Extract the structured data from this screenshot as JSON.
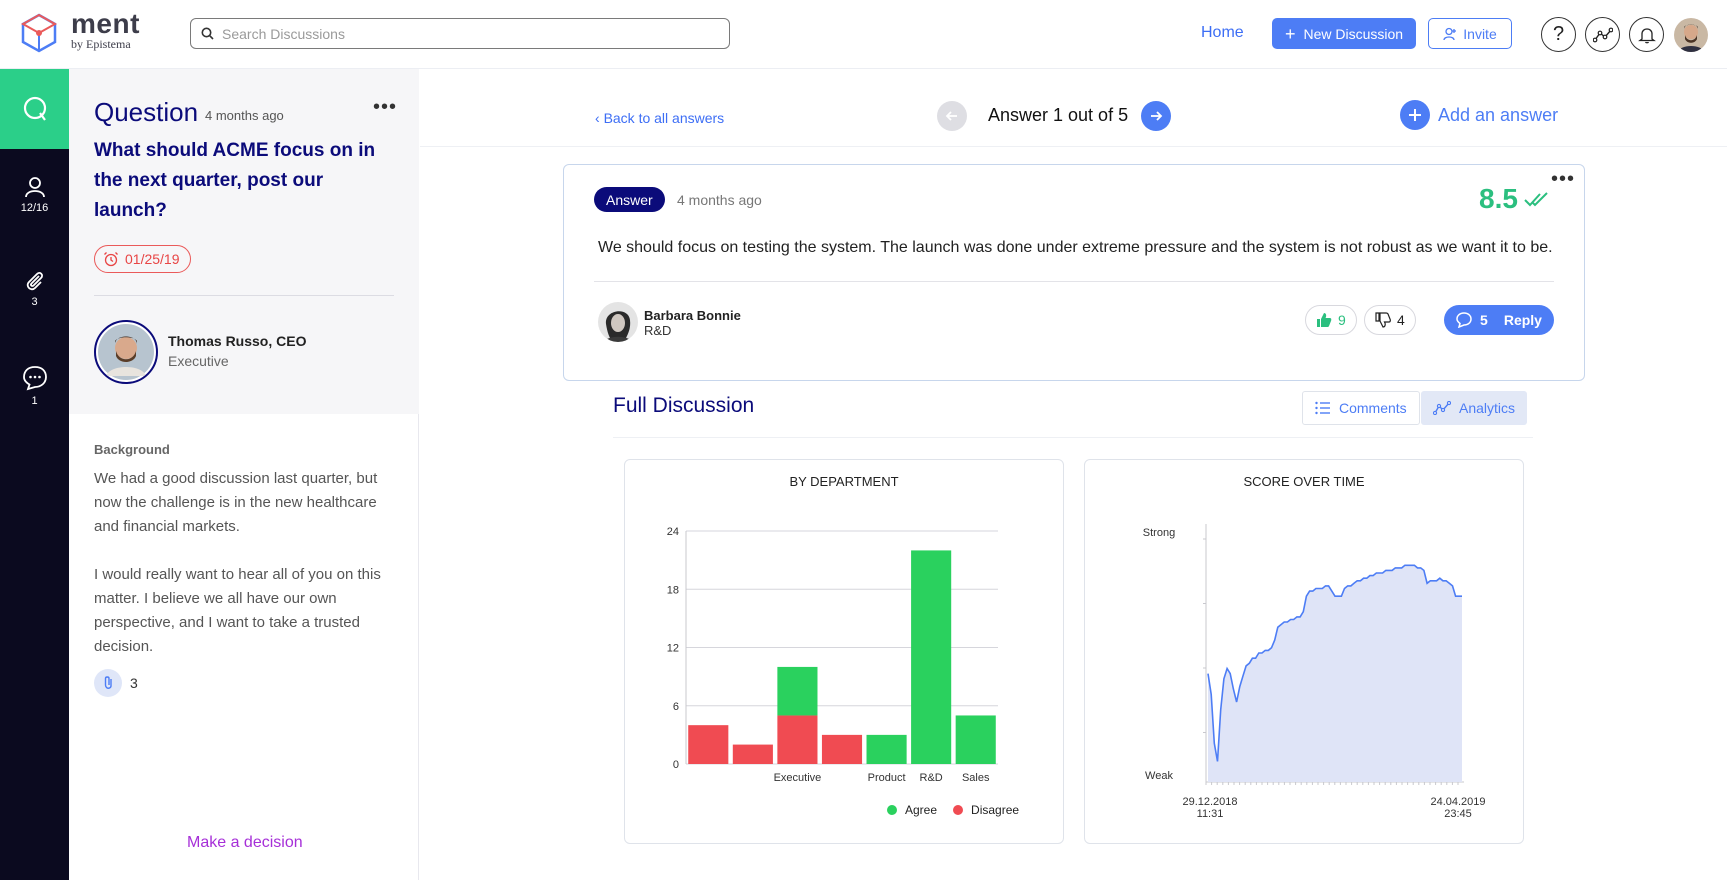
{
  "app": {
    "brand_name": "ment",
    "brand_sub": "by Epistema",
    "accent": "#4d7df5",
    "agree_color": "#2ad15e",
    "disagree_color": "#f04b52"
  },
  "header": {
    "search_placeholder": "Search Discussions",
    "home_label": "Home",
    "new_discussion_label": "New Discussion",
    "invite_label": "Invite",
    "help_label": "?"
  },
  "rail": {
    "participants_count": "12/16",
    "attachments_count": "3",
    "comments_count": "1"
  },
  "question": {
    "label": "Question",
    "age": "4 months ago",
    "title": "What should ACME focus on in the next quarter, post our launch?",
    "due_date": "01/25/19",
    "author_name": "Thomas Russo, CEO",
    "author_role": "Executive",
    "background_label": "Background",
    "background_p1": "We had a good discussion last quarter, but now the challenge is in the new healthcare and financial markets.",
    "background_p2": "I would really want to hear all of you on this matter. I believe we all have our own perspective, and I want to take a trusted decision.",
    "attachments": "3",
    "make_decision_label": "Make a decision"
  },
  "answer_nav": {
    "back_label": "Back to all answers",
    "position_label": "Answer 1 out of 5",
    "add_answer_label": "Add an answer"
  },
  "answer": {
    "badge": "Answer",
    "age": "4 months ago",
    "score": "8.5",
    "text": "We should focus on testing the system. The launch was done under extreme pressure and the system is not robust as we want it to be.",
    "author_name": "Barbara Bonnie",
    "author_dept": "R&D",
    "upvotes": "9",
    "downvotes": "4",
    "reply_count": "5",
    "reply_label": "Reply"
  },
  "discussion": {
    "title": "Full Discussion",
    "tab_comments": "Comments",
    "tab_analytics": "Analytics"
  },
  "chart_data": [
    {
      "type": "bar",
      "title": "BY DEPARTMENT",
      "ylim": [
        0,
        24
      ],
      "yticks": [
        0,
        6,
        12,
        18,
        24
      ],
      "grid": true,
      "x_tick_labels": [
        "Executive",
        "Product",
        "R&D",
        "Sales"
      ],
      "bars": [
        {
          "category": "",
          "agree": 0,
          "disagree": 4
        },
        {
          "category": "",
          "agree": 0,
          "disagree": 2
        },
        {
          "category": "Executive",
          "agree": 5,
          "disagree": 5
        },
        {
          "category": "",
          "agree": 0,
          "disagree": 3
        },
        {
          "category": "Product",
          "agree": 3,
          "disagree": 0
        },
        {
          "category": "R&D",
          "agree": 22,
          "disagree": 0
        },
        {
          "category": "Sales",
          "agree": 5,
          "disagree": 0
        }
      ],
      "legend": [
        "Agree",
        "Disagree"
      ],
      "legend_position": "bottom-right"
    },
    {
      "type": "area",
      "title": "SCORE OVER TIME",
      "y_labels": [
        "Weak",
        "Strong"
      ],
      "ylim": [
        0,
        1
      ],
      "x_start_label": [
        "29.12.2018",
        "11:31"
      ],
      "x_end_label": [
        "24.04.2019",
        "23:45"
      ],
      "points": [
        0.42,
        0.34,
        0.15,
        0.08,
        0.28,
        0.4,
        0.44,
        0.42,
        0.36,
        0.31,
        0.37,
        0.41,
        0.45,
        0.46,
        0.48,
        0.48,
        0.5,
        0.5,
        0.51,
        0.51,
        0.52,
        0.55,
        0.6,
        0.61,
        0.62,
        0.62,
        0.63,
        0.63,
        0.64,
        0.64,
        0.66,
        0.72,
        0.74,
        0.74,
        0.75,
        0.75,
        0.75,
        0.76,
        0.76,
        0.74,
        0.72,
        0.72,
        0.72,
        0.75,
        0.76,
        0.76,
        0.77,
        0.78,
        0.78,
        0.79,
        0.79,
        0.8,
        0.8,
        0.81,
        0.81,
        0.81,
        0.82,
        0.82,
        0.82,
        0.83,
        0.83,
        0.83,
        0.84,
        0.84,
        0.84,
        0.84,
        0.83,
        0.83,
        0.82,
        0.77,
        0.78,
        0.78,
        0.78,
        0.79,
        0.78,
        0.78,
        0.77,
        0.76,
        0.72,
        0.72,
        0.72
      ],
      "grid": false
    }
  ]
}
